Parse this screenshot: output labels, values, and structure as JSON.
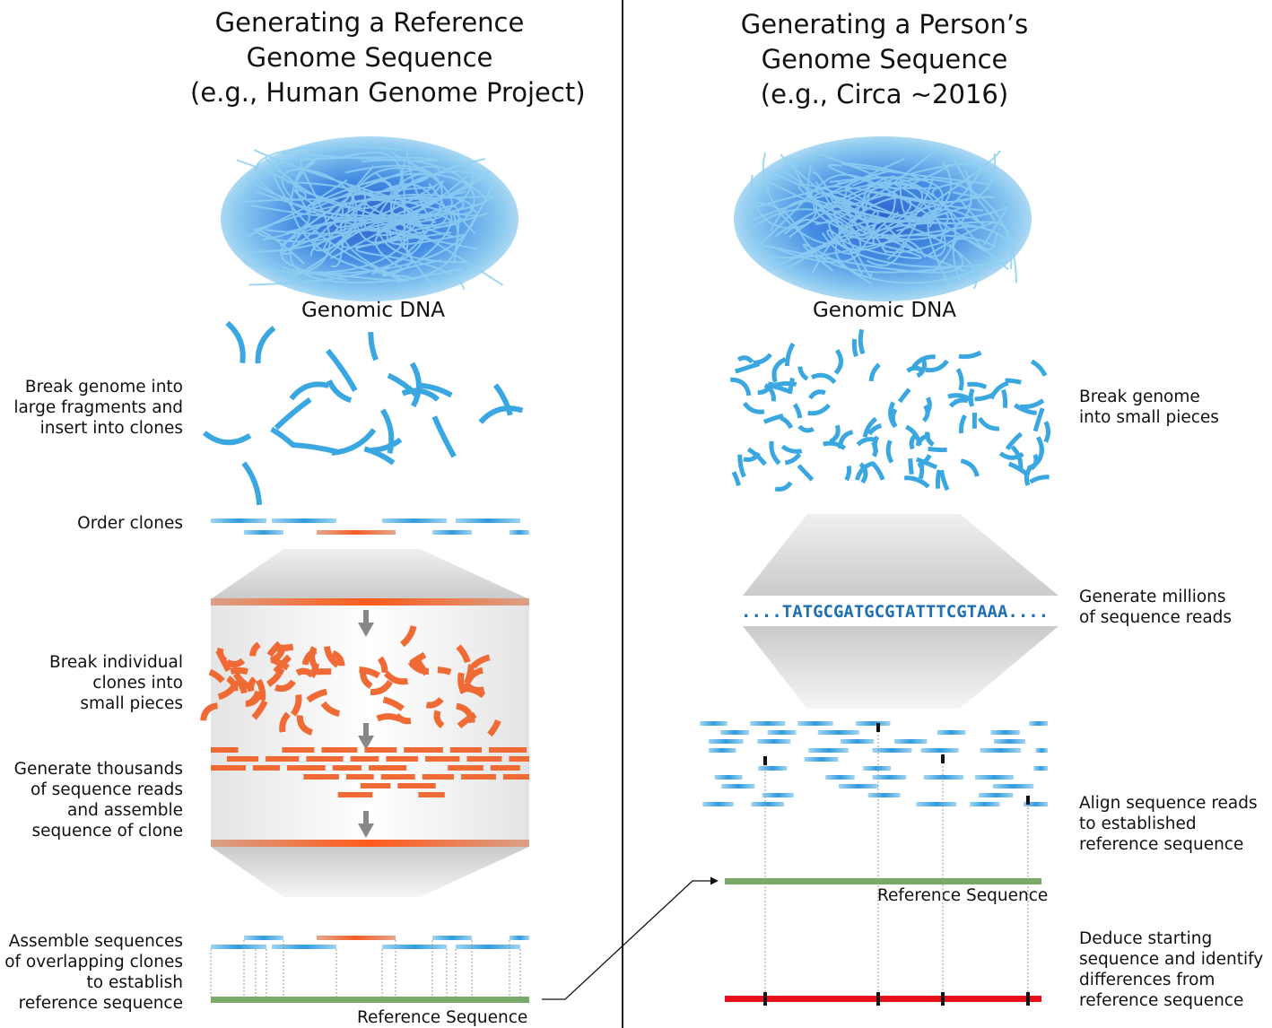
{
  "left": {
    "title_lines": [
      "Generating a Reference",
      "Genome Sequence",
      "(e.g., Human Genome Project)"
    ],
    "dna_label": "Genomic DNA",
    "steps": {
      "break": [
        "Break genome into",
        "large fragments and",
        "insert into clones"
      ],
      "order": "Order clones",
      "break_clones": [
        "Break individual",
        "clones into",
        "small pieces"
      ],
      "generate": [
        "Generate thousands",
        "of sequence reads",
        "and assemble",
        "sequence of clone"
      ],
      "assemble": [
        "Assemble sequences",
        "of overlapping clones",
        "to establish",
        "reference sequence"
      ]
    },
    "reference_label": "Reference Sequence"
  },
  "right": {
    "title_lines": [
      "Generating a Person’s",
      "Genome Sequence",
      "(e.g., Circa ~2016)"
    ],
    "dna_label": "Genomic DNA",
    "steps": {
      "break": [
        "Break genome",
        "into small pieces"
      ],
      "generate": [
        "Generate millions",
        "of sequence reads"
      ],
      "align": [
        "Align sequence reads",
        "to established",
        "reference sequence"
      ],
      "deduce": [
        "Deduce starting",
        "sequence and identify",
        "differences from",
        "reference sequence"
      ]
    },
    "sequence_read": "....TATGCGATGCGTATTTCGTAAA....",
    "reference_label": "Reference Sequence"
  },
  "colors": {
    "fragment_blue": "#3aa7e0",
    "clone_orange": "#f06a35",
    "reference_green": "#7aaa6a",
    "person_red": "#e8101a",
    "sequence_blue": "#1f6fb5"
  }
}
